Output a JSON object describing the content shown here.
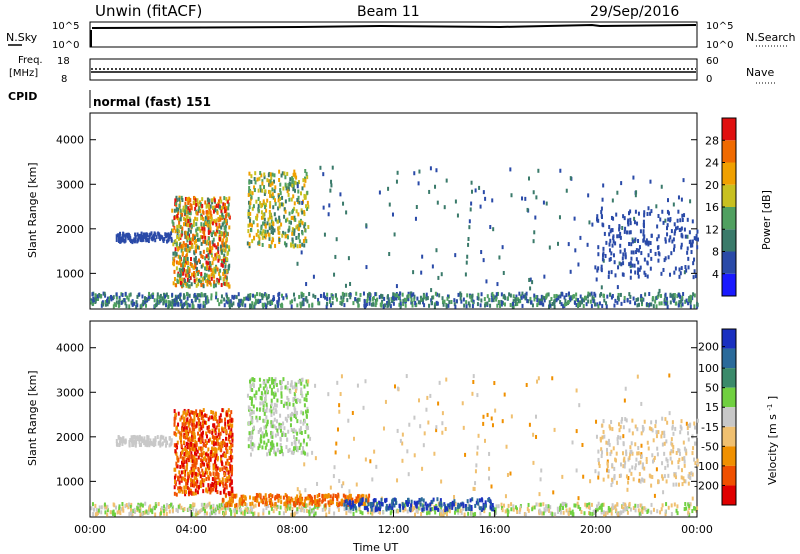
{
  "header": {
    "station": "Unwin (fitACF)",
    "beam": "Beam 11",
    "date": "29/Sep/2016"
  },
  "nsky_panel": {
    "left_label": "N.Sky",
    "right_label": "N.Search",
    "left_ticks": [
      "10^5",
      "10^0"
    ],
    "right_ticks": [
      "10^5",
      "10^0"
    ]
  },
  "freq_panel": {
    "left_label_1": "Freq.",
    "left_label_2": "[MHz]",
    "left_ticks": [
      "18",
      "8"
    ],
    "right_ticks": [
      "60",
      "0"
    ],
    "right_label": "Nave"
  },
  "cpid_panel": {
    "label": "CPID",
    "value": "normal (fast) 151"
  },
  "chart_data": [
    {
      "type": "heatmap",
      "title": "",
      "ylabel": "Slant Range [km]",
      "ylim": [
        200,
        4600
      ],
      "yticks": [
        "1000",
        "2000",
        "3000",
        "4000"
      ],
      "colorbar": {
        "label": "Power [dB]",
        "ticks": [
          "4",
          "8",
          "12",
          "16",
          "20",
          "24",
          "28"
        ],
        "colors": [
          "#1a1aff",
          "#2a4aa8",
          "#3a7a6a",
          "#50a060",
          "#c8c020",
          "#f0a000",
          "#f06a00",
          "#e01010"
        ]
      },
      "series": [
        {
          "name": "",
          "x": [
            0,
            24
          ],
          "y": [
            400,
            400
          ],
          "values": [
            8,
            8
          ]
        }
      ]
    },
    {
      "type": "heatmap",
      "title": "",
      "xlabel": "Time UT",
      "ylabel": "Slant Range [km]",
      "ylim": [
        200,
        4600
      ],
      "xticks": [
        "00:00",
        "04:00",
        "08:00",
        "12:00",
        "16:00",
        "20:00",
        "00:00"
      ],
      "yticks": [
        "1000",
        "2000",
        "3000",
        "4000"
      ],
      "colorbar": {
        "label": "Velocity [m s",
        "label_sup": "-1",
        "label_end": "]",
        "ticks": [
          "200",
          "100",
          "50",
          "15",
          "-15",
          "-50",
          "-100",
          "-200"
        ],
        "colors": [
          "#1a30c0",
          "#2a6a9a",
          "#3a8a6a",
          "#70d040",
          "#c8c8c8",
          "#f0c070",
          "#f09000",
          "#f05000",
          "#e00000"
        ]
      }
    }
  ]
}
